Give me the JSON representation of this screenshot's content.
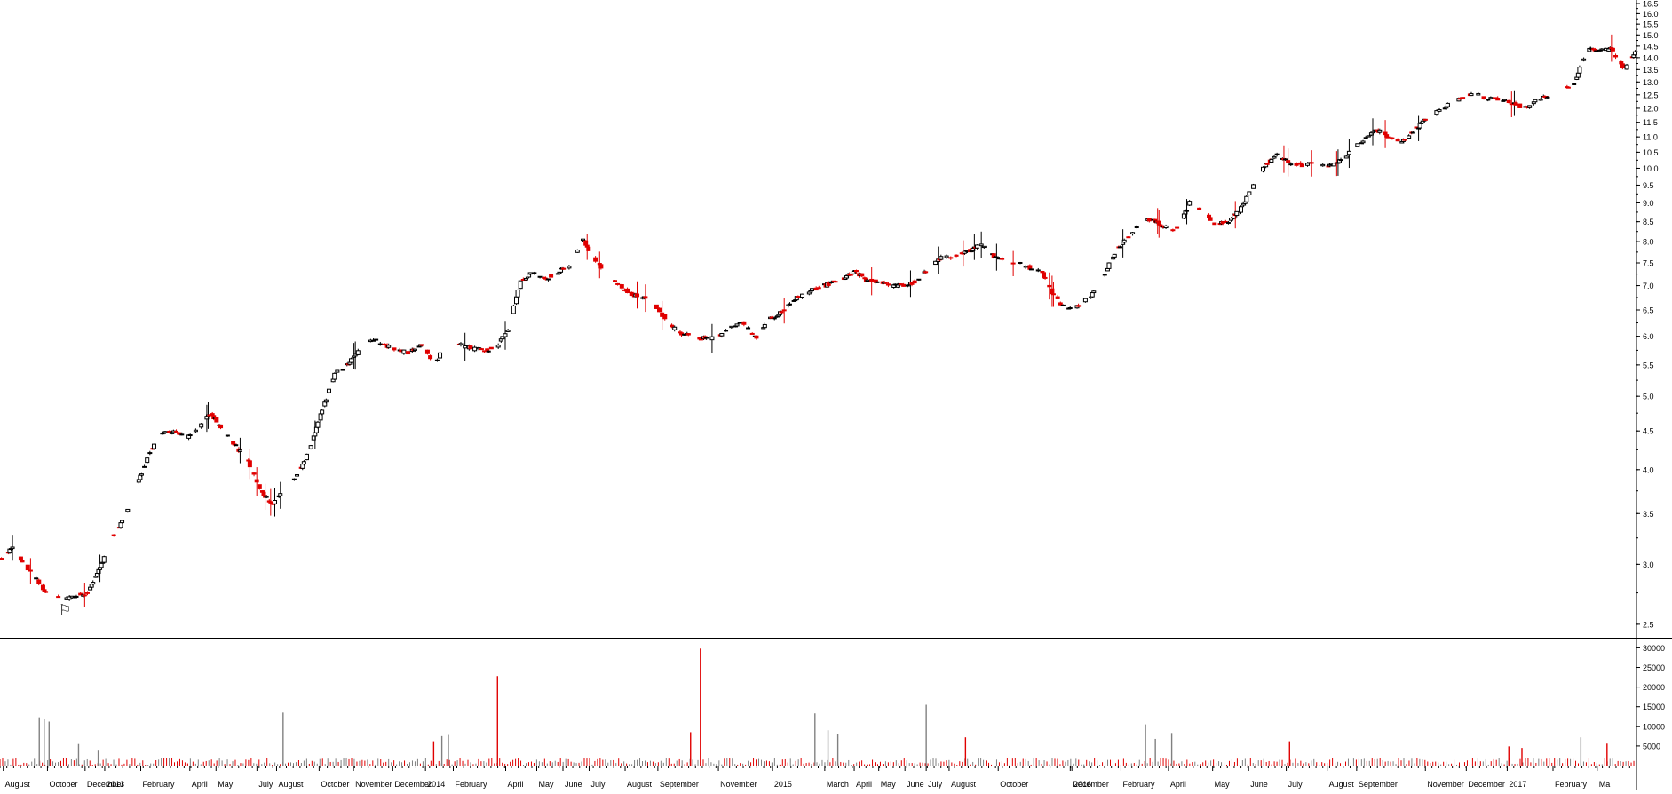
{
  "chart_data": [
    {
      "type": "candlestick",
      "scale": "log",
      "ylim": [
        2.4,
        16.5
      ],
      "price_ticks": [
        2.5,
        3.0,
        3.5,
        4.0,
        4.5,
        5.0,
        5.5,
        6.0,
        6.5,
        7.0,
        7.5,
        8.0,
        8.5,
        9.0,
        9.5,
        10.0,
        10.5,
        11.0,
        11.5,
        12.0,
        12.5,
        13.0,
        13.5,
        14.0,
        14.5,
        15.0,
        15.5,
        16.0,
        16.5
      ],
      "price_tick_labels": [
        "2.5",
        "3.0",
        "3.5",
        "4.0",
        "4.5",
        "5.0",
        "5.5",
        "6.0",
        "6.5",
        "7.0",
        "7.5",
        "8.0",
        "8.5",
        "9.0",
        "9.5",
        "10.0",
        "10.5",
        "11.0",
        "11.5",
        "12.0",
        "12.5",
        "13.0",
        "13.5",
        "14.0",
        "14.5",
        "15.0",
        "15.5",
        "16.0",
        "16.5"
      ],
      "period": [
        "2012-07",
        "2017-03"
      ],
      "price_path": [
        3.05,
        3.15,
        3.0,
        2.85,
        2.72,
        2.7,
        2.72,
        2.75,
        2.95,
        3.25,
        3.45,
        3.8,
        4.2,
        4.45,
        4.5,
        4.4,
        4.55,
        4.75,
        4.5,
        4.3,
        4.1,
        3.75,
        3.6,
        3.8,
        3.95,
        4.25,
        4.8,
        5.35,
        5.5,
        5.75,
        5.95,
        5.85,
        5.75,
        5.7,
        5.85,
        5.55,
        5.8,
        5.85,
        5.78,
        5.75,
        5.8,
        6.15,
        7.1,
        7.3,
        7.15,
        7.3,
        7.45,
        8.05,
        7.55,
        7.2,
        7.0,
        6.8,
        6.75,
        6.55,
        6.2,
        6.05,
        6.0,
        5.95,
        6.0,
        6.2,
        6.25,
        5.95,
        6.3,
        6.45,
        6.7,
        6.85,
        6.95,
        7.05,
        7.15,
        7.3,
        7.1,
        7.1,
        7.0,
        7.0,
        7.1,
        7.4,
        7.65,
        7.65,
        7.75,
        7.95,
        7.7,
        7.55,
        7.5,
        7.4,
        7.3,
        6.8,
        6.5,
        6.6,
        6.8,
        7.2,
        7.8,
        8.1,
        8.55,
        8.55,
        8.35,
        8.3,
        9.05,
        8.8,
        8.45,
        8.5,
        8.8,
        9.4,
        10.1,
        10.4,
        10.15,
        10.1,
        10.2,
        10.05,
        10.2,
        10.55,
        10.9,
        11.25,
        11.0,
        10.8,
        11.2,
        11.6,
        11.9,
        12.2,
        12.45,
        12.55,
        12.35,
        12.3,
        12.2,
        12.0,
        12.3,
        12.45,
        12.7,
        13.0,
        14.3,
        14.4,
        14.35,
        13.5,
        14.35
      ],
      "big_red_candle_at": [
        1,
        8,
        20,
        22,
        47,
        48,
        53,
        57,
        66,
        85,
        96,
        108,
        130
      ],
      "volume_ylim": [
        0,
        31000
      ],
      "volume_ticks": [
        5000,
        10000,
        15000,
        20000,
        25000,
        30000
      ],
      "volume_tick_labels": [
        "5000",
        "10000",
        "15000",
        "20000",
        "25000",
        "30000"
      ],
      "volume_spikes": [
        {
          "t": 0.024,
          "v": 12300,
          "up": false
        },
        {
          "t": 0.027,
          "v": 11800,
          "up": false
        },
        {
          "t": 0.03,
          "v": 11200,
          "up": false
        },
        {
          "t": 0.048,
          "v": 5500,
          "up": false
        },
        {
          "t": 0.06,
          "v": 3800,
          "up": false
        },
        {
          "t": 0.173,
          "v": 13500,
          "up": false
        },
        {
          "t": 0.265,
          "v": 6200,
          "up": true
        },
        {
          "t": 0.27,
          "v": 7500,
          "up": false
        },
        {
          "t": 0.274,
          "v": 7800,
          "up": false
        },
        {
          "t": 0.304,
          "v": 22800,
          "up": true
        },
        {
          "t": 0.422,
          "v": 8500,
          "up": true
        },
        {
          "t": 0.428,
          "v": 29800,
          "up": true
        },
        {
          "t": 0.498,
          "v": 13300,
          "up": false
        },
        {
          "t": 0.506,
          "v": 9000,
          "up": false
        },
        {
          "t": 0.512,
          "v": 8100,
          "up": false
        },
        {
          "t": 0.566,
          "v": 15500,
          "up": false
        },
        {
          "t": 0.59,
          "v": 7200,
          "up": true
        },
        {
          "t": 0.7,
          "v": 10500,
          "up": false
        },
        {
          "t": 0.706,
          "v": 6800,
          "up": false
        },
        {
          "t": 0.716,
          "v": 8300,
          "up": false
        },
        {
          "t": 0.788,
          "v": 6200,
          "up": true
        },
        {
          "t": 0.922,
          "v": 4900,
          "up": true
        },
        {
          "t": 0.93,
          "v": 4500,
          "up": true
        },
        {
          "t": 0.966,
          "v": 7200,
          "up": false
        },
        {
          "t": 0.982,
          "v": 5600,
          "up": true
        }
      ],
      "x_months": [
        {
          "label": "August",
          "t": 0.002
        },
        {
          "label": "October",
          "t": 0.029
        },
        {
          "label": "December",
          "t": 0.052
        },
        {
          "label": "2013",
          "t": 0.064
        },
        {
          "label": "February",
          "t": 0.086
        },
        {
          "label": "April",
          "t": 0.116
        },
        {
          "label": "May",
          "t": 0.132
        },
        {
          "label": "July",
          "t": 0.157
        },
        {
          "label": "August",
          "t": 0.169
        },
        {
          "label": "October",
          "t": 0.195
        },
        {
          "label": "November",
          "t": 0.216
        },
        {
          "label": "December",
          "t": 0.24
        },
        {
          "label": "2014",
          "t": 0.26
        },
        {
          "label": "February",
          "t": 0.277
        },
        {
          "label": "April",
          "t": 0.309
        },
        {
          "label": "May",
          "t": 0.328
        },
        {
          "label": "June",
          "t": 0.344
        },
        {
          "label": "July",
          "t": 0.36
        },
        {
          "label": "August",
          "t": 0.382
        },
        {
          "label": "September",
          "t": 0.402
        },
        {
          "label": "November",
          "t": 0.439
        },
        {
          "label": "2015",
          "t": 0.472
        },
        {
          "label": "March",
          "t": 0.504
        },
        {
          "label": "April",
          "t": 0.522
        },
        {
          "label": "May",
          "t": 0.537
        },
        {
          "label": "June",
          "t": 0.553
        },
        {
          "label": "July",
          "t": 0.566
        },
        {
          "label": "August",
          "t": 0.58
        },
        {
          "label": "October",
          "t": 0.61
        },
        {
          "label": "December",
          "t": 0.654
        },
        {
          "label": "2016",
          "t": 0.655
        },
        {
          "label": "February",
          "t": 0.685
        },
        {
          "label": "April",
          "t": 0.714
        },
        {
          "label": "May",
          "t": 0.741
        },
        {
          "label": "June",
          "t": 0.763
        },
        {
          "label": "July",
          "t": 0.786
        },
        {
          "label": "August",
          "t": 0.811
        },
        {
          "label": "September",
          "t": 0.829
        },
        {
          "label": "November",
          "t": 0.871
        },
        {
          "label": "December",
          "t": 0.896
        },
        {
          "label": "2017",
          "t": 0.921
        },
        {
          "label": "February",
          "t": 0.949
        },
        {
          "label": "Ma",
          "t": 0.976
        }
      ]
    }
  ],
  "colors": {
    "up": "#000000",
    "down": "#e00000",
    "volume_up": "#808080",
    "volume_down": "#e00000",
    "axis": "#000000"
  },
  "marker": {
    "text": "⚐"
  }
}
